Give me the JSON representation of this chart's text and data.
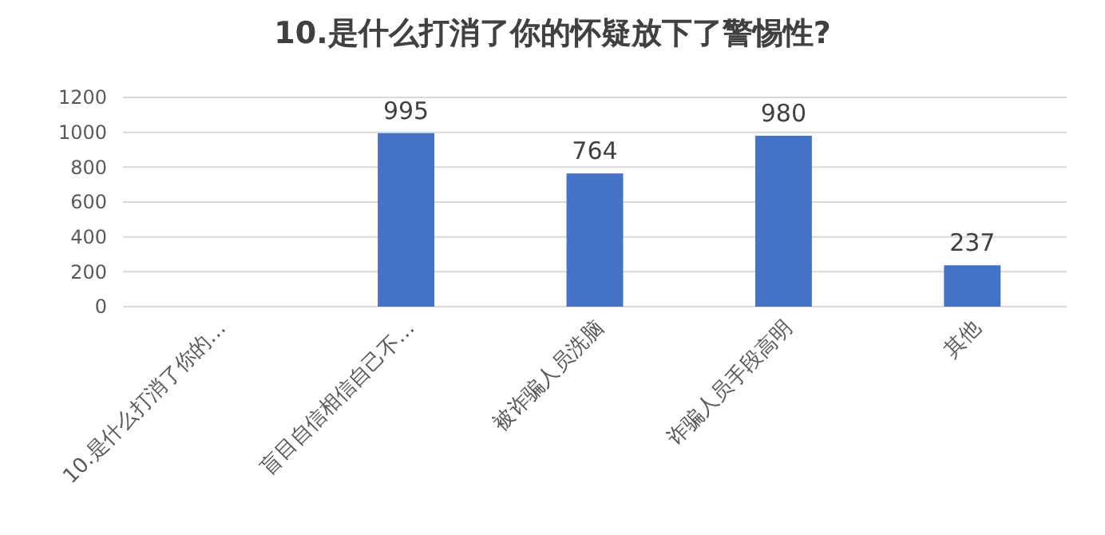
{
  "chart_data": {
    "type": "bar",
    "title": "10.是什么打消了你的怀疑放下了警惕性?",
    "categories": [
      "10.是什么打消了你的…",
      "盲目自信相信自己不…",
      "被诈骗人员洗脑",
      "诈骗人员手段高明",
      "其他"
    ],
    "values": [
      null,
      995,
      764,
      980,
      237
    ],
    "color": "#4472c4",
    "ylim": [
      0,
      1200
    ],
    "yticks": [
      0,
      200,
      400,
      600,
      800,
      1000,
      1200
    ],
    "grid": "y",
    "data_labels": true
  }
}
